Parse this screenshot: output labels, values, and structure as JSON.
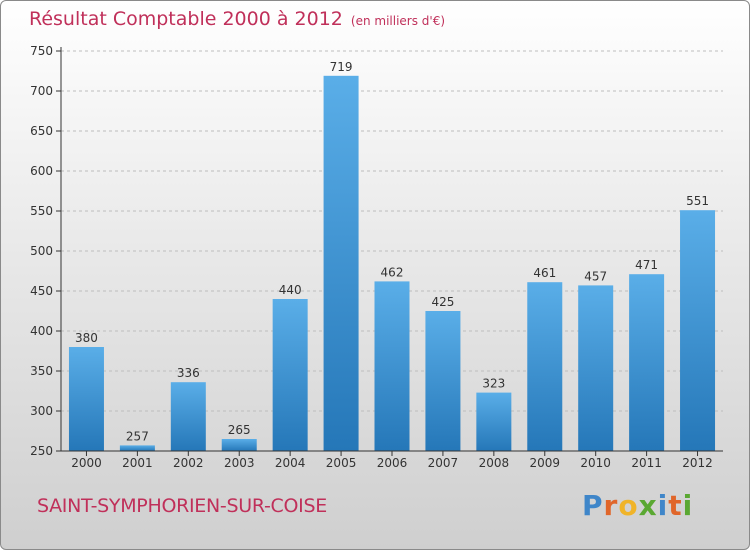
{
  "header": {
    "title": "Résultat Comptable 2000 à 2012",
    "subtitle": "(en milliers d'€)"
  },
  "footer": {
    "place": "SAINT-SYMPHORIEN-SUR-COISE",
    "logo": "Proxiti"
  },
  "colors": {
    "title": "#c0305a",
    "bar_top": "#5aaee8",
    "bar_bottom": "#2577b8"
  },
  "chart_data": {
    "type": "bar",
    "title": "Résultat Comptable 2000 à 2012",
    "subtitle": "(en milliers d'€)",
    "categories": [
      "2000",
      "2001",
      "2002",
      "2003",
      "2004",
      "2005",
      "2006",
      "2007",
      "2008",
      "2009",
      "2010",
      "2011",
      "2012"
    ],
    "values": [
      380,
      257,
      336,
      265,
      440,
      719,
      462,
      425,
      323,
      461,
      457,
      471,
      551
    ],
    "ylim": [
      250,
      750
    ],
    "yticks": [
      250,
      300,
      350,
      400,
      450,
      500,
      550,
      600,
      650,
      700,
      750
    ],
    "grid": true
  }
}
